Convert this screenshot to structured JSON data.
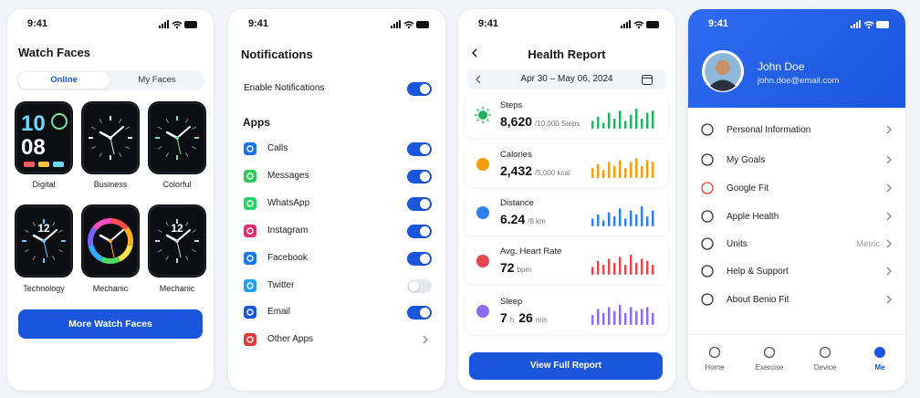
{
  "watch_faces": {
    "status_time": "9:41",
    "title": "Watch Faces",
    "tabs": [
      "Online",
      "My Faces"
    ],
    "active_tab": 0,
    "faces": [
      {
        "label": "Digital",
        "display": [
          "10",
          "08"
        ],
        "accent": "#6fd8ff"
      },
      {
        "label": "Business",
        "accent": "#e8ecf2"
      },
      {
        "label": "Colorful",
        "accent": "#7be0a8"
      },
      {
        "label": "Technology",
        "display": [
          "12"
        ],
        "accent": "#5ec8ff"
      },
      {
        "label": "Mechanic",
        "accent": "#ffb020"
      },
      {
        "label": "Mechanic",
        "display": [
          "12"
        ],
        "accent": "#c9d3dd"
      }
    ],
    "button": "More Watch Faces"
  },
  "notifications": {
    "status_time": "9:41",
    "title": "Notifications",
    "master": {
      "label": "Enable Notifications",
      "on": true
    },
    "section": "Apps",
    "apps": [
      {
        "label": "Calls",
        "color": "#1a73e8",
        "on": true
      },
      {
        "label": "Messages",
        "color": "#34c759",
        "on": true
      },
      {
        "label": "WhatsApp",
        "color": "#25d366",
        "on": true
      },
      {
        "label": "Instagram",
        "color": "#e1306c",
        "on": true
      },
      {
        "label": "Facebook",
        "color": "#1877f2",
        "on": true
      },
      {
        "label": "Twitter",
        "color": "#1da1f2",
        "on": false
      },
      {
        "label": "Email",
        "color": "#1a56db",
        "on": true
      },
      {
        "label": "Other Apps",
        "color": "#e53935"
      }
    ]
  },
  "health": {
    "status_time": "9:41",
    "title": "Health Report",
    "date_range": "Apr 30 – May 06, 2024",
    "metrics": [
      {
        "label": "Steps",
        "value": "8,620",
        "unit": "/10,000 Steps",
        "color": "#22b35e",
        "bars": [
          4,
          6,
          3,
          8,
          5,
          9,
          4,
          7,
          10,
          5,
          8,
          9
        ]
      },
      {
        "label": "Calories",
        "value": "2,432",
        "unit": "/5,000 kcal",
        "color": "#f59e0b",
        "bars": [
          5,
          7,
          4,
          8,
          6,
          9,
          5,
          8,
          10,
          6,
          9,
          8
        ]
      },
      {
        "label": "Distance",
        "value": "6.24",
        "unit": "/8 km",
        "color": "#2f80ed",
        "bars": [
          4,
          6,
          3,
          7,
          5,
          9,
          4,
          8,
          6,
          10,
          5,
          8
        ]
      },
      {
        "label": "Avg. Heart Rate",
        "value": "72",
        "unit": "bpm",
        "color": "#e5484d",
        "bars": [
          4,
          7,
          5,
          8,
          6,
          9,
          5,
          10,
          6,
          8,
          7,
          5
        ]
      },
      {
        "label": "Sleep",
        "value": "7",
        "unit": "h",
        "value2": "26",
        "unit2": "min",
        "color": "#8b6cf0",
        "bars": [
          5,
          8,
          6,
          9,
          7,
          10,
          6,
          9,
          7,
          8,
          9,
          6
        ]
      }
    ],
    "button": "View Full Report"
  },
  "profile": {
    "status_time": "9:41",
    "name": "John Doe",
    "email": "john.doe@email.com",
    "menu": [
      {
        "label": "Personal Information"
      },
      {
        "label": "My Goals"
      },
      {
        "label": "Google Fit"
      },
      {
        "label": "Apple Health"
      },
      {
        "label": "Units",
        "detail": "Metric"
      },
      {
        "label": "Help & Support"
      },
      {
        "label": "About Benio Fit"
      }
    ],
    "tabs": [
      "Home",
      "Exercise",
      "Device",
      "Me"
    ],
    "active_tab": 3
  }
}
